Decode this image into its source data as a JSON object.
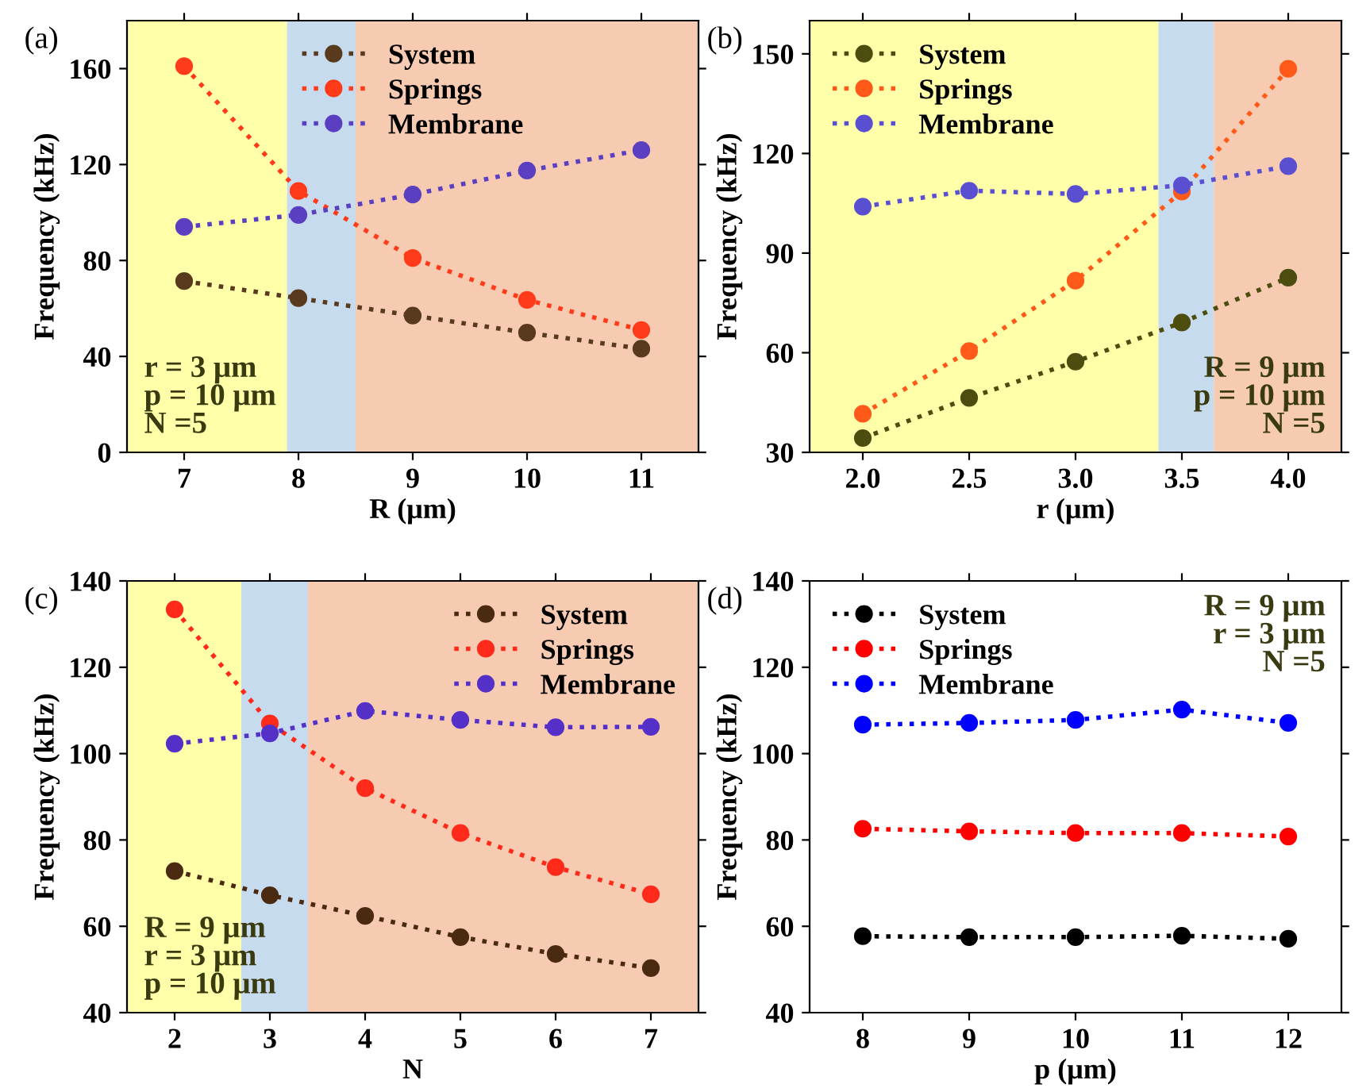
{
  "chart_data": [
    {
      "type": "line",
      "title": "(a)",
      "xlabel": "R (μm)",
      "ylabel": "Frequency (kHz)",
      "x": [
        7,
        8,
        9,
        10,
        11
      ],
      "xlim": [
        6.5,
        11.5
      ],
      "xticks": [
        7,
        8,
        9,
        10,
        11
      ],
      "ylim": [
        0,
        180
      ],
      "yticks": [
        0,
        40,
        80,
        120,
        160
      ],
      "marker": "circle",
      "line_style": "dotted",
      "legend": "top",
      "annotations": [
        "r = 3 μm",
        "p = 10 μm",
        "N =5"
      ],
      "bands": [
        {
          "axis": "x",
          "from": 6.5,
          "to": 7.9,
          "color": "#ffffaa"
        },
        {
          "axis": "x",
          "from": 7.9,
          "to": 8.5,
          "color": "#c6dbee"
        },
        {
          "axis": "x",
          "from": 8.5,
          "to": 11.5,
          "color": "#f7cbb2"
        }
      ],
      "series": [
        {
          "name": "System",
          "color": "#5a3a1e",
          "values": [
            71.4,
            64.3,
            57,
            49.9,
            43.2
          ]
        },
        {
          "name": "Springs",
          "color": "#ff3b1a",
          "values": [
            161,
            109,
            81,
            63.6,
            51
          ]
        },
        {
          "name": "Membrane",
          "color": "#5a3fc0",
          "values": [
            94,
            99,
            107.5,
            117.5,
            126
          ]
        }
      ]
    },
    {
      "type": "line",
      "title": "(b)",
      "xlabel": "r (μm)",
      "ylabel": "Frequency (kHz)",
      "x": [
        2.0,
        2.5,
        3.0,
        3.5,
        4.0
      ],
      "xlim": [
        1.75,
        4.25
      ],
      "xticks": [
        {
          "value": 2.0,
          "label": "2.0"
        },
        {
          "value": 2.5,
          "label": "2.5"
        },
        {
          "value": 3.0,
          "label": "3.0"
        },
        {
          "value": 3.5,
          "label": "3.5"
        },
        {
          "value": 4.0,
          "label": "4.0"
        }
      ],
      "ylim": [
        30,
        160
      ],
      "yticks": [
        30,
        60,
        90,
        120,
        150
      ],
      "marker": "circle",
      "line_style": "dotted",
      "legend": "top left",
      "annotations": [
        "R = 9 μm",
        "p = 10 μm",
        "N =5"
      ],
      "bands": [
        {
          "axis": "x",
          "from": 1.75,
          "to": 3.39,
          "color": "#ffffaa"
        },
        {
          "axis": "x",
          "from": 3.39,
          "to": 3.65,
          "color": "#c6dbee"
        },
        {
          "axis": "x",
          "from": 3.65,
          "to": 4.25,
          "color": "#f7cbb2"
        }
      ],
      "series": [
        {
          "name": "System",
          "color": "#4d4d10",
          "values": [
            34.3,
            46.4,
            57.3,
            69.1,
            82.6
          ]
        },
        {
          "name": "Springs",
          "color": "#ff5a1a",
          "values": [
            41.6,
            60.5,
            81.7,
            108.5,
            145.5
          ]
        },
        {
          "name": "Membrane",
          "color": "#5a4fd0",
          "values": [
            104,
            108.8,
            107.8,
            110.4,
            116.2
          ]
        }
      ]
    },
    {
      "type": "line",
      "title": "(c)",
      "xlabel": "N",
      "ylabel": "Frequency (kHz)",
      "x": [
        2,
        3,
        4,
        5,
        6,
        7
      ],
      "xlim": [
        1.5,
        7.5
      ],
      "xticks": [
        2,
        3,
        4,
        5,
        6,
        7
      ],
      "ylim": [
        40,
        140
      ],
      "yticks": [
        40,
        60,
        80,
        100,
        120,
        140
      ],
      "marker": "circle",
      "line_style": "dotted",
      "legend": "top right",
      "annotations": [
        "R = 9 μm",
        "r = 3 μm",
        "p = 10 μm"
      ],
      "bands": [
        {
          "axis": "x",
          "from": 1.5,
          "to": 2.7,
          "color": "#ffffaa"
        },
        {
          "axis": "x",
          "from": 2.7,
          "to": 3.4,
          "color": "#c6dbee"
        },
        {
          "axis": "x",
          "from": 3.4,
          "to": 7.5,
          "color": "#f7cbb2"
        }
      ],
      "series": [
        {
          "name": "System",
          "color": "#4a2a10",
          "values": [
            72.8,
            67.2,
            62.4,
            57.5,
            53.6,
            50.3
          ]
        },
        {
          "name": "Springs",
          "color": "#ff2a1a",
          "values": [
            133.4,
            107,
            92,
            81.6,
            73.7,
            67.4
          ]
        },
        {
          "name": "Membrane",
          "color": "#5530c8",
          "values": [
            102.3,
            104.7,
            109.9,
            107.8,
            106.1,
            106.2
          ]
        }
      ]
    },
    {
      "type": "line",
      "title": "(d)",
      "xlabel": "p (μm)",
      "ylabel": "Frequency (kHz)",
      "x": [
        8,
        9,
        10,
        11,
        12
      ],
      "xlim": [
        7.5,
        12.5
      ],
      "xticks": [
        8,
        9,
        10,
        11,
        12
      ],
      "ylim": [
        40,
        140
      ],
      "yticks": [
        40,
        60,
        80,
        100,
        120,
        140
      ],
      "marker": "circle",
      "line_style": "dotted",
      "legend": "top left",
      "annotations": [
        "R = 9 μm",
        "r = 3 μm",
        "N =5"
      ],
      "series": [
        {
          "name": "System",
          "color": "#000000",
          "values": [
            57.7,
            57.5,
            57.5,
            57.8,
            57.1
          ]
        },
        {
          "name": "Springs",
          "color": "#ff0000",
          "values": [
            82.6,
            82,
            81.6,
            81.6,
            80.8
          ]
        },
        {
          "name": "Membrane",
          "color": "#0000ff",
          "values": [
            106.7,
            107.1,
            107.8,
            110.2,
            107.1
          ]
        }
      ]
    }
  ]
}
